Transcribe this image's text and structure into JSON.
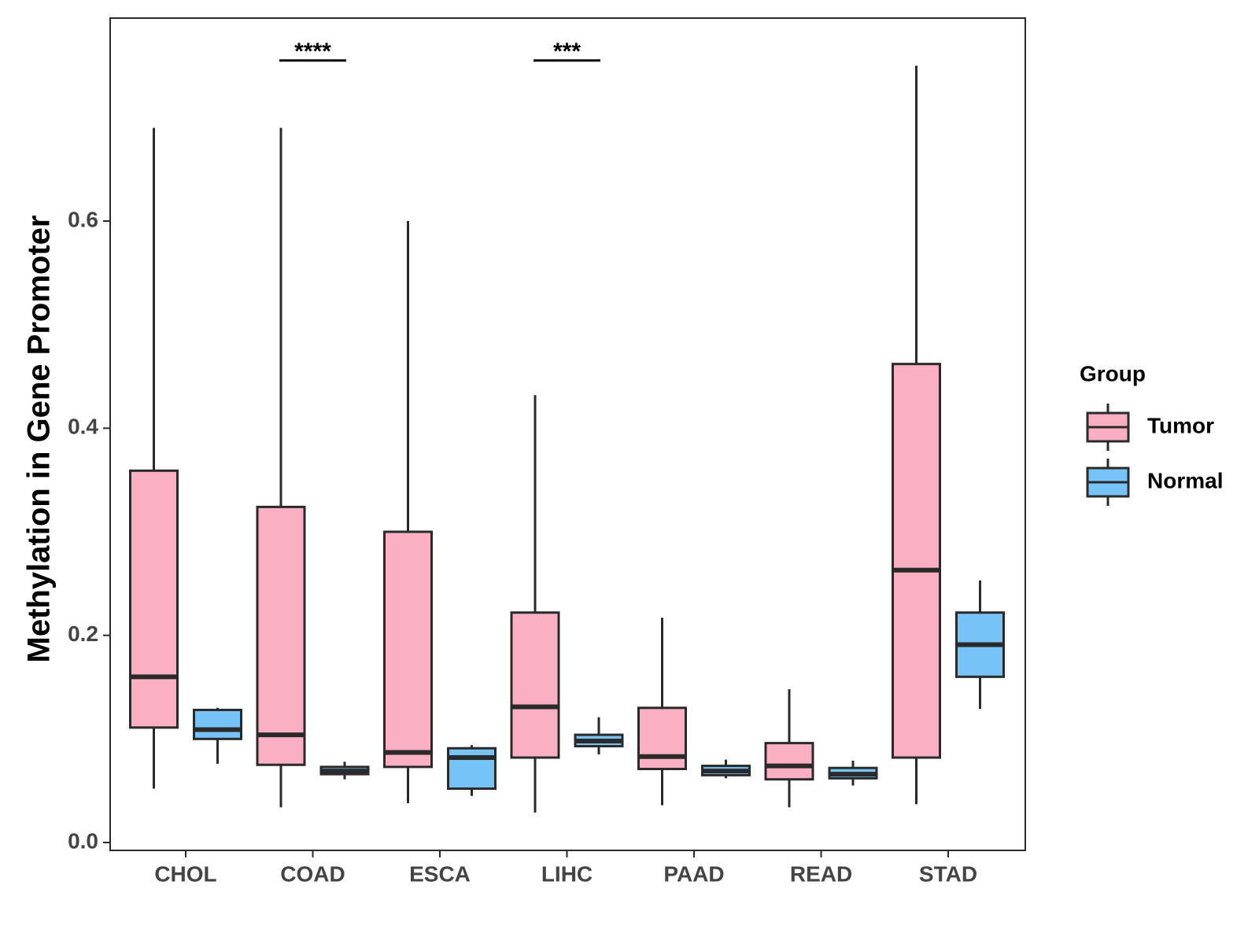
{
  "chart_data": {
    "type": "boxplot",
    "title": "",
    "xlabel": "",
    "ylabel": "Methylation in Gene Promoter",
    "ylim": [
      -0.01,
      0.79
    ],
    "yticks": [
      0.0,
      0.2,
      0.4,
      0.6
    ],
    "ytick_labels": [
      "0.0",
      "0.2",
      "0.4",
      "0.6"
    ],
    "categories": [
      "CHOL",
      "COAD",
      "ESCA",
      "LIHC",
      "PAAD",
      "READ",
      "STAD"
    ],
    "grid": false,
    "legend": {
      "title": "Group",
      "position": "right",
      "entries": [
        "Tumor",
        "Normal"
      ]
    },
    "colors": {
      "Tumor": "#FAB0C2",
      "Normal": "#77C2F7",
      "outline": "#2a2a2a"
    },
    "series": [
      {
        "name": "Tumor",
        "boxes": [
          {
            "category": "CHOL",
            "whisker_low": 0.052,
            "q1": 0.111,
            "median": 0.16,
            "q3": 0.359,
            "whisker_high": 0.69
          },
          {
            "category": "COAD",
            "whisker_low": 0.034,
            "q1": 0.075,
            "median": 0.104,
            "q3": 0.324,
            "whisker_high": 0.69
          },
          {
            "category": "ESCA",
            "whisker_low": 0.038,
            "q1": 0.073,
            "median": 0.087,
            "q3": 0.3,
            "whisker_high": 0.6
          },
          {
            "category": "LIHC",
            "whisker_low": 0.029,
            "q1": 0.082,
            "median": 0.131,
            "q3": 0.222,
            "whisker_high": 0.432
          },
          {
            "category": "PAAD",
            "whisker_low": 0.036,
            "q1": 0.071,
            "median": 0.083,
            "q3": 0.13,
            "whisker_high": 0.217
          },
          {
            "category": "READ",
            "whisker_low": 0.034,
            "q1": 0.061,
            "median": 0.074,
            "q3": 0.096,
            "whisker_high": 0.148
          },
          {
            "category": "STAD",
            "whisker_low": 0.037,
            "q1": 0.082,
            "median": 0.263,
            "q3": 0.462,
            "whisker_high": 0.75
          }
        ]
      },
      {
        "name": "Normal",
        "boxes": [
          {
            "category": "CHOL",
            "whisker_low": 0.076,
            "q1": 0.1,
            "median": 0.109,
            "q3": 0.128,
            "whisker_high": 0.13
          },
          {
            "category": "COAD",
            "whisker_low": 0.061,
            "q1": 0.066,
            "median": 0.069,
            "q3": 0.073,
            "whisker_high": 0.078
          },
          {
            "category": "ESCA",
            "whisker_low": 0.045,
            "q1": 0.052,
            "median": 0.082,
            "q3": 0.091,
            "whisker_high": 0.094
          },
          {
            "category": "LIHC",
            "whisker_low": 0.085,
            "q1": 0.093,
            "median": 0.098,
            "q3": 0.104,
            "whisker_high": 0.121
          },
          {
            "category": "PAAD",
            "whisker_low": 0.062,
            "q1": 0.065,
            "median": 0.069,
            "q3": 0.074,
            "whisker_high": 0.08
          },
          {
            "category": "READ",
            "whisker_low": 0.055,
            "q1": 0.062,
            "median": 0.066,
            "q3": 0.072,
            "whisker_high": 0.079
          },
          {
            "category": "STAD",
            "whisker_low": 0.129,
            "q1": 0.16,
            "median": 0.191,
            "q3": 0.222,
            "whisker_high": 0.253
          }
        ]
      }
    ],
    "annotations": [
      {
        "category": "COAD",
        "label": "****",
        "y": 0.755
      },
      {
        "category": "LIHC",
        "label": "***",
        "y": 0.755
      }
    ]
  }
}
